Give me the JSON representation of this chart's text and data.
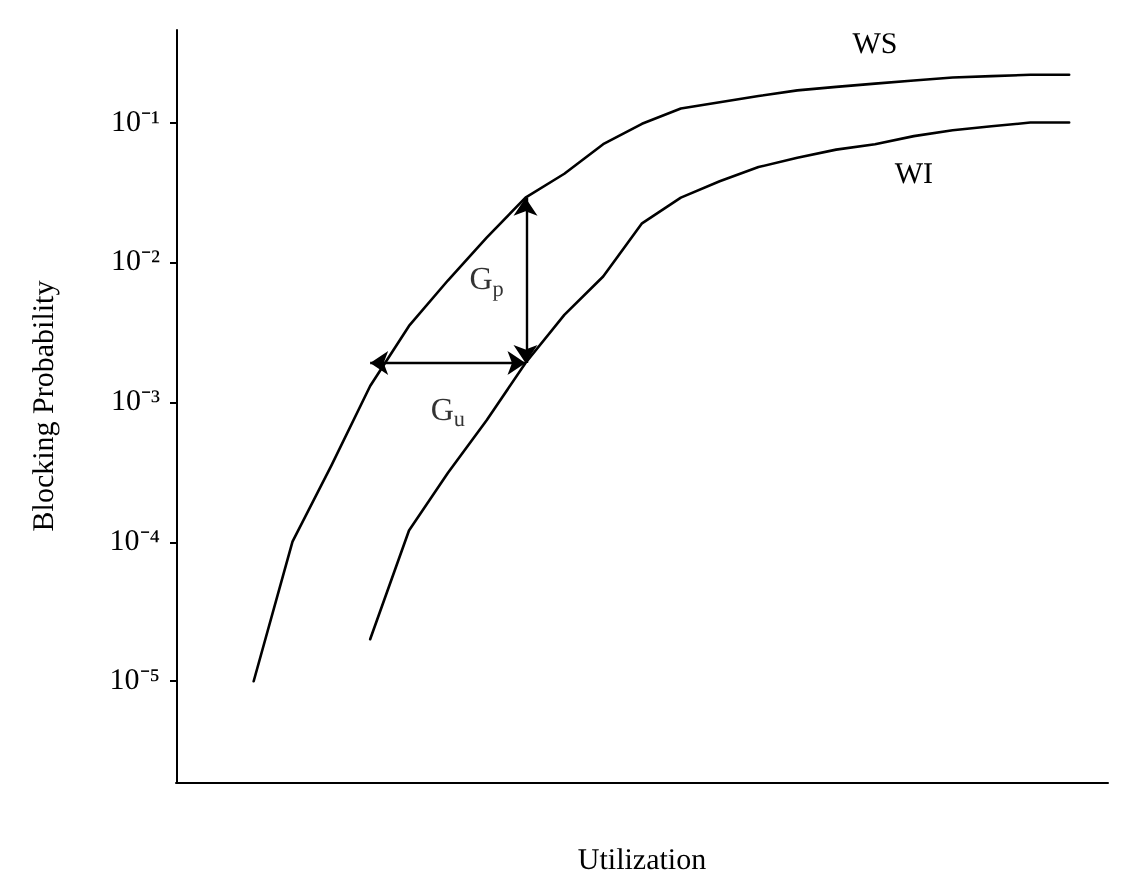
{
  "chart_data": {
    "type": "line",
    "xlabel": "Utilization",
    "ylabel": "Blocking Probability",
    "log": "y",
    "grid": false,
    "legend": false,
    "marker": "none",
    "line_style": "solid",
    "tick_labels": "y",
    "categories": [
      null,
      null,
      null,
      null,
      null,
      null,
      null,
      null,
      null,
      null,
      null,
      null,
      null,
      null,
      null,
      null,
      null,
      null,
      null,
      null,
      null,
      null,
      null,
      null,
      null
    ],
    "ylim": [
      1.9e-06,
      0.46
    ],
    "yticks": [
      {
        "value": 0.1,
        "label": "10⁻¹"
      },
      {
        "value": 0.01,
        "label": "10⁻²"
      },
      {
        "value": 0.001,
        "label": "10⁻³"
      },
      {
        "value": 0.0001,
        "label": "10⁻⁴"
      },
      {
        "value": 1e-05,
        "label": "10⁻⁵"
      }
    ],
    "series": [
      {
        "name": "WS",
        "color": "#000000",
        "values": [
          null,
          null,
          1e-05,
          0.0001,
          0.00035,
          0.0013,
          0.0035,
          0.0074,
          0.015,
          0.029,
          0.043,
          0.07,
          0.098,
          0.126,
          0.14,
          0.155,
          0.17,
          0.18,
          0.19,
          0.2,
          0.21,
          0.215,
          0.22,
          0.22,
          null
        ]
      },
      {
        "name": "WI",
        "color": "#000000",
        "values": [
          null,
          null,
          null,
          null,
          null,
          2e-05,
          0.00012,
          0.00031,
          0.00074,
          0.0019,
          0.0042,
          0.0079,
          0.019,
          0.029,
          0.038,
          0.048,
          0.056,
          0.064,
          0.07,
          0.08,
          0.088,
          0.094,
          0.1,
          0.1,
          null
        ]
      }
    ],
    "annotations": [
      "G$_{p}$",
      "G$_{u}$"
    ]
  }
}
